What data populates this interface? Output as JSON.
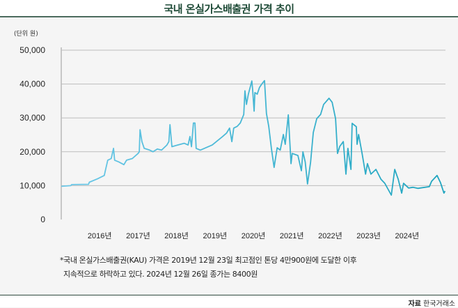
{
  "chart_data": {
    "type": "line",
    "title": "국내 온실가스배출권 가격 추이",
    "unit_label": "(단위 원)",
    "xlabel": "",
    "ylabel": "",
    "ylim": [
      0,
      50000
    ],
    "xlim": [
      2015.0,
      2025.0
    ],
    "yticks": [
      0,
      10000,
      20000,
      30000,
      40000,
      50000
    ],
    "ytick_labels": [
      "0",
      "10,000",
      "20,000",
      "30,000",
      "40,000",
      "50,000"
    ],
    "xticks": [
      2016,
      2017,
      2018,
      2019,
      2020,
      2021,
      2022,
      2023,
      2024
    ],
    "xtick_labels": [
      "2016년",
      "2017년",
      "2018년",
      "2019년",
      "2020년",
      "2021년",
      "2022년",
      "2023년",
      "2024년"
    ],
    "grid": true,
    "series": [
      {
        "name": "KAU 가격",
        "color_start": "#6cc8e8",
        "color_end": "#1fa5bf",
        "x": [
          2015.0,
          2015.25,
          2015.27,
          2015.71,
          2015.73,
          2015.94,
          2016.12,
          2016.16,
          2016.21,
          2016.3,
          2016.36,
          2016.39,
          2016.5,
          2016.63,
          2016.7,
          2016.85,
          2017.0,
          2017.03,
          2017.05,
          2017.1,
          2017.16,
          2017.3,
          2017.39,
          2017.5,
          2017.61,
          2017.75,
          2017.8,
          2017.83,
          2017.88,
          2018.03,
          2018.2,
          2018.3,
          2018.35,
          2018.39,
          2018.44,
          2018.48,
          2018.51,
          2018.62,
          2018.93,
          2019.2,
          2019.3,
          2019.38,
          2019.44,
          2019.49,
          2019.58,
          2019.66,
          2019.75,
          2019.78,
          2019.82,
          2019.87,
          2019.96,
          2019.98,
          2020.02,
          2020.04,
          2020.1,
          2020.16,
          2020.22,
          2020.29,
          2020.34,
          2020.4,
          2020.47,
          2020.54,
          2020.62,
          2020.7,
          2020.78,
          2020.83,
          2020.91,
          2020.98,
          2021.01,
          2021.16,
          2021.25,
          2021.29,
          2021.35,
          2021.41,
          2021.49,
          2021.56,
          2021.65,
          2021.75,
          2021.83,
          2021.97,
          2022.05,
          2022.14,
          2022.19,
          2022.25,
          2022.34,
          2022.41,
          2022.46,
          2022.54,
          2022.57,
          2022.68,
          2022.7,
          2022.74,
          2022.83,
          2022.92,
          2022.97,
          2023.06,
          2023.19,
          2023.32,
          2023.42,
          2023.59,
          2023.68,
          2023.77,
          2023.86,
          2023.91,
          2024.04,
          2024.15,
          2024.28,
          2024.4,
          2024.58,
          2024.64,
          2024.78,
          2024.87,
          2024.96,
          2024.99
        ],
        "values": [
          9800,
          10000,
          10300,
          10400,
          11000,
          12000,
          13000,
          15000,
          17500,
          18000,
          21000,
          17500,
          17000,
          16200,
          17500,
          18000,
          19500,
          20000,
          26500,
          23000,
          21000,
          20500,
          20000,
          20800,
          20500,
          22000,
          23000,
          28000,
          21500,
          22000,
          22500,
          22000,
          24500,
          21500,
          28500,
          28500,
          21000,
          20500,
          22000,
          24500,
          25500,
          27000,
          23000,
          27000,
          27500,
          28500,
          31000,
          38000,
          34000,
          37000,
          40900,
          38500,
          32000,
          37500,
          37000,
          39000,
          40000,
          41000,
          31300,
          27500,
          21000,
          15400,
          21200,
          20500,
          25100,
          22200,
          30900,
          16500,
          19500,
          18900,
          14400,
          20000,
          17000,
          10500,
          16900,
          25700,
          29800,
          31000,
          34000,
          35800,
          34600,
          29800,
          19500,
          21600,
          23000,
          13400,
          21000,
          14800,
          28400,
          27400,
          22200,
          25100,
          19500,
          13400,
          16500,
          13400,
          14800,
          11900,
          10700,
          7200,
          14800,
          11900,
          7800,
          10700,
          9300,
          9500,
          9200,
          9400,
          9700,
          11300,
          13000,
          10900,
          7800,
          8400
        ]
      }
    ]
  },
  "annotation": {
    "line1": "*국내 온실가스배출권(KAU) 가격은 2019년 12월 23일 최고점인 톤당 4만900원에 도달한 이후",
    "line2": "지속적으로 하락하고 있다. 2024년 12월 26일 종가는 8400원"
  },
  "source": {
    "label": "자료",
    "value": "한국거래소"
  }
}
